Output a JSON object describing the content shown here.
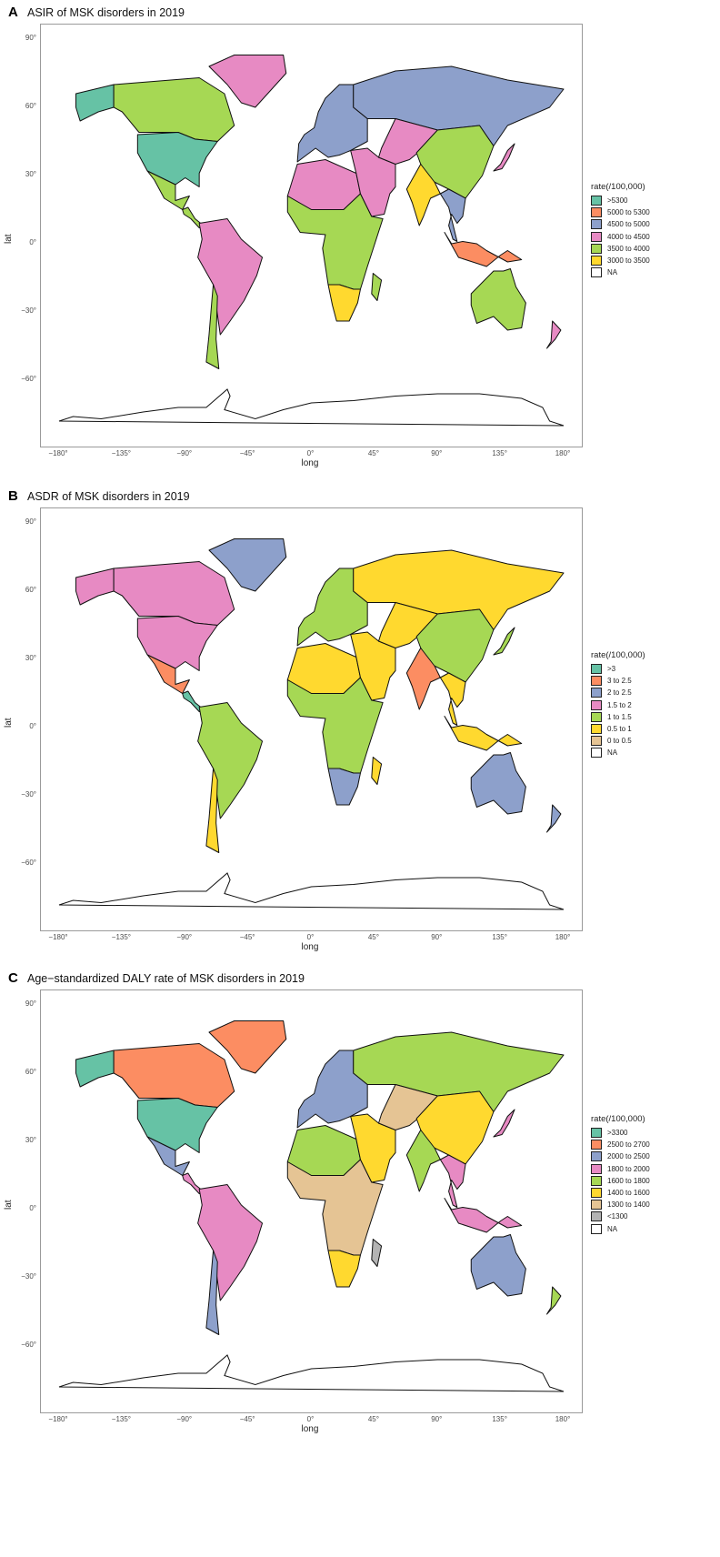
{
  "panels": [
    {
      "letter": "A",
      "title": "ASIR of MSK disorders in 2019",
      "legend": {
        "title": "rate(/100,000)",
        "items": [
          {
            "label": ">5300",
            "color": "#66c2a5"
          },
          {
            "label": "5000 to 5300",
            "color": "#fc8d62"
          },
          {
            "label": "4500 to 5000",
            "color": "#8da0cb"
          },
          {
            "label": "4000 to 4500",
            "color": "#e78ac3"
          },
          {
            "label": "3500 to 4000",
            "color": "#a6d854"
          },
          {
            "label": "3000 to 3500",
            "color": "#ffd92f"
          },
          {
            "label": "NA",
            "color": "#ffffff"
          }
        ]
      },
      "regions": {
        "alaska": "#66c2a5",
        "canada": "#a6d854",
        "greenland": "#e78ac3",
        "usa": "#66c2a5",
        "mexico": "#a6d854",
        "central_america": "#a6d854",
        "south_america": "#e78ac3",
        "chile": "#a6d854",
        "europe": "#8da0cb",
        "russia": "#8da0cb",
        "north_africa": "#e78ac3",
        "africa": "#a6d854",
        "southern_africa": "#ffd92f",
        "middle_east": "#e78ac3",
        "central_asia": "#e78ac3",
        "china": "#a6d854",
        "india": "#ffd92f",
        "southeast_asia": "#8da0cb",
        "indonesia": "#fc8d62",
        "australia": "#a6d854",
        "japan": "#e78ac3",
        "new_zealand": "#e78ac3",
        "madagascar": "#a6d854"
      }
    },
    {
      "letter": "B",
      "title": "ASDR of MSK disorders in 2019",
      "legend": {
        "title": "rate(/100,000)",
        "items": [
          {
            "label": ">3",
            "color": "#66c2a5"
          },
          {
            "label": "3 to 2.5",
            "color": "#fc8d62"
          },
          {
            "label": "2 to 2.5",
            "color": "#8da0cb"
          },
          {
            "label": "1.5 to 2",
            "color": "#e78ac3"
          },
          {
            "label": "1 to 1.5",
            "color": "#a6d854"
          },
          {
            "label": "0.5 to 1",
            "color": "#ffd92f"
          },
          {
            "label": "0 to 0.5",
            "color": "#e5c494"
          },
          {
            "label": "NA",
            "color": "#ffffff"
          }
        ]
      },
      "regions": {
        "alaska": "#e78ac3",
        "canada": "#e78ac3",
        "greenland": "#8da0cb",
        "usa": "#e78ac3",
        "mexico": "#fc8d62",
        "central_america": "#66c2a5",
        "south_america": "#a6d854",
        "chile": "#ffd92f",
        "europe": "#a6d854",
        "russia": "#ffd92f",
        "north_africa": "#ffd92f",
        "africa": "#a6d854",
        "southern_africa": "#8da0cb",
        "middle_east": "#ffd92f",
        "central_asia": "#ffd92f",
        "china": "#a6d854",
        "india": "#fc8d62",
        "southeast_asia": "#ffd92f",
        "indonesia": "#ffd92f",
        "australia": "#8da0cb",
        "japan": "#a6d854",
        "new_zealand": "#8da0cb",
        "madagascar": "#ffd92f"
      }
    },
    {
      "letter": "C",
      "title": "Age−standardized DALY rate of MSK disorders in 2019",
      "legend": {
        "title": "rate(/100,000)",
        "items": [
          {
            "label": ">3300",
            "color": "#66c2a5"
          },
          {
            "label": "2500 to 2700",
            "color": "#fc8d62"
          },
          {
            "label": "2000 to 2500",
            "color": "#8da0cb"
          },
          {
            "label": "1800 to 2000",
            "color": "#e78ac3"
          },
          {
            "label": "1600 to 1800",
            "color": "#a6d854"
          },
          {
            "label": "1400 to 1600",
            "color": "#ffd92f"
          },
          {
            "label": "1300 to 1400",
            "color": "#e5c494"
          },
          {
            "label": "<1300",
            "color": "#b3b3b3"
          },
          {
            "label": "NA",
            "color": "#ffffff"
          }
        ]
      },
      "regions": {
        "alaska": "#66c2a5",
        "canada": "#fc8d62",
        "greenland": "#fc8d62",
        "usa": "#66c2a5",
        "mexico": "#8da0cb",
        "central_america": "#e78ac3",
        "south_america": "#e78ac3",
        "chile": "#8da0cb",
        "europe": "#8da0cb",
        "russia": "#a6d854",
        "north_africa": "#a6d854",
        "africa": "#e5c494",
        "southern_africa": "#ffd92f",
        "middle_east": "#ffd92f",
        "central_asia": "#e5c494",
        "china": "#ffd92f",
        "india": "#a6d854",
        "southeast_asia": "#e78ac3",
        "indonesia": "#e78ac3",
        "australia": "#8da0cb",
        "japan": "#e78ac3",
        "new_zealand": "#a6d854",
        "madagascar": "#b3b3b3"
      }
    }
  ],
  "axes": {
    "xlabel": "long",
    "ylabel": "lat",
    "xticks": [
      "−180°",
      "−135°",
      "−90°",
      "−45°",
      "0°",
      "45°",
      "90°",
      "135°",
      "180°"
    ],
    "yticks": [
      "90°",
      "60°",
      "30°",
      "0°",
      "−30°",
      "−60°"
    ]
  }
}
